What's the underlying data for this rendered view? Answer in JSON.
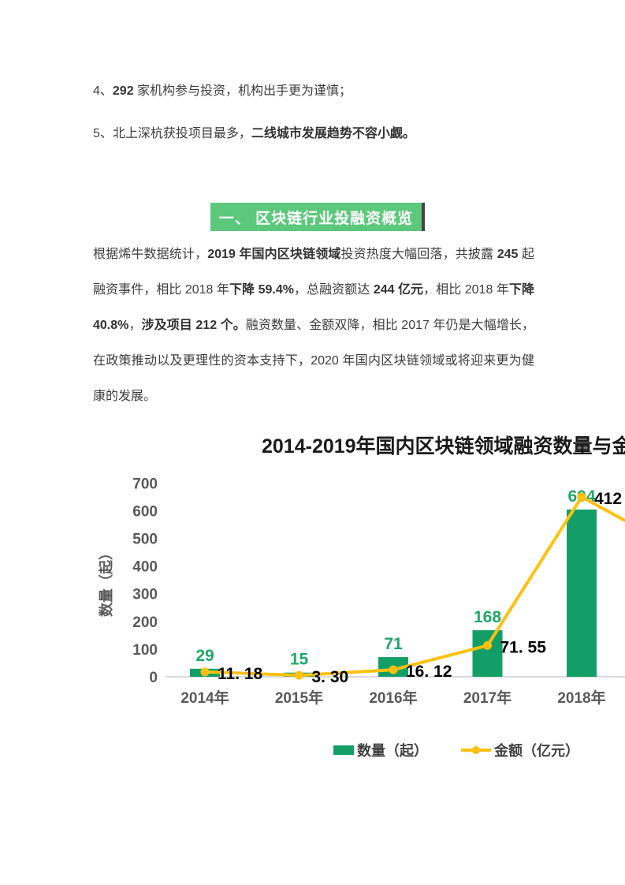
{
  "list_items": {
    "item4": {
      "pre": "4、",
      "bold": "292",
      "rest": " 家机构参与投资，机构出手更为谨慎；"
    },
    "item5": {
      "pre": "5、北上深杭获投项目最多，",
      "bold": "二线城市发展趋势不容小觑。"
    }
  },
  "section_heading": {
    "label": "一、 区块链行业投融资概览",
    "bg_color": "#5cc87c",
    "text_color": "#ffffff"
  },
  "paragraph": {
    "p1": "根据烯牛数据统计，",
    "b1": "2019 年国内区块链领域",
    "p2": "投资热度大幅回落，共披露 ",
    "b2": "245",
    "p3": " 起融资事件，相比 2018 年",
    "b3": "下降 59.4%",
    "p4": "，总融资额达 ",
    "b4": "244 亿元",
    "p5": "，相比 2018 年",
    "b5": "下降 40.8%",
    "p6": "，",
    "b6": "涉及项目 212 个。",
    "p7": "融资数量、金额双降，相比 2017 年仍是大幅增长，在政策推动以及更理性的资本支持下，2020 年国内区块链领域或将迎来更为健康的发展。"
  },
  "chart_data": {
    "type": "combo",
    "title": "2014-2019年国内区块链领域融资数量与金",
    "categories": [
      "2014年",
      "2015年",
      "2016年",
      "2017年",
      "2018年"
    ],
    "series": [
      {
        "name": "数量（起）",
        "type": "bar",
        "color": "#149e67",
        "label_color": "#1ea768",
        "values": [
          29,
          15,
          71,
          168,
          604
        ],
        "labels": [
          "29",
          "15",
          "71",
          "168",
          "604"
        ]
      },
      {
        "name": "金额（亿元）",
        "type": "line",
        "color": "#fec110",
        "label_color": "#000000",
        "values": [
          11.18,
          3.3,
          16.12,
          71.55,
          412
        ],
        "labels": [
          "11. 18",
          "3. 30",
          "16. 12",
          "71. 55",
          "412"
        ]
      }
    ],
    "ylabel": "数量（起）",
    "yticks": [
      0,
      100,
      200,
      300,
      400,
      500,
      600,
      700
    ],
    "ylim": [
      0,
      700
    ],
    "axis_text_color": "#595959",
    "baseline_color": "#d9d9d9",
    "legend_position": "bottom"
  }
}
